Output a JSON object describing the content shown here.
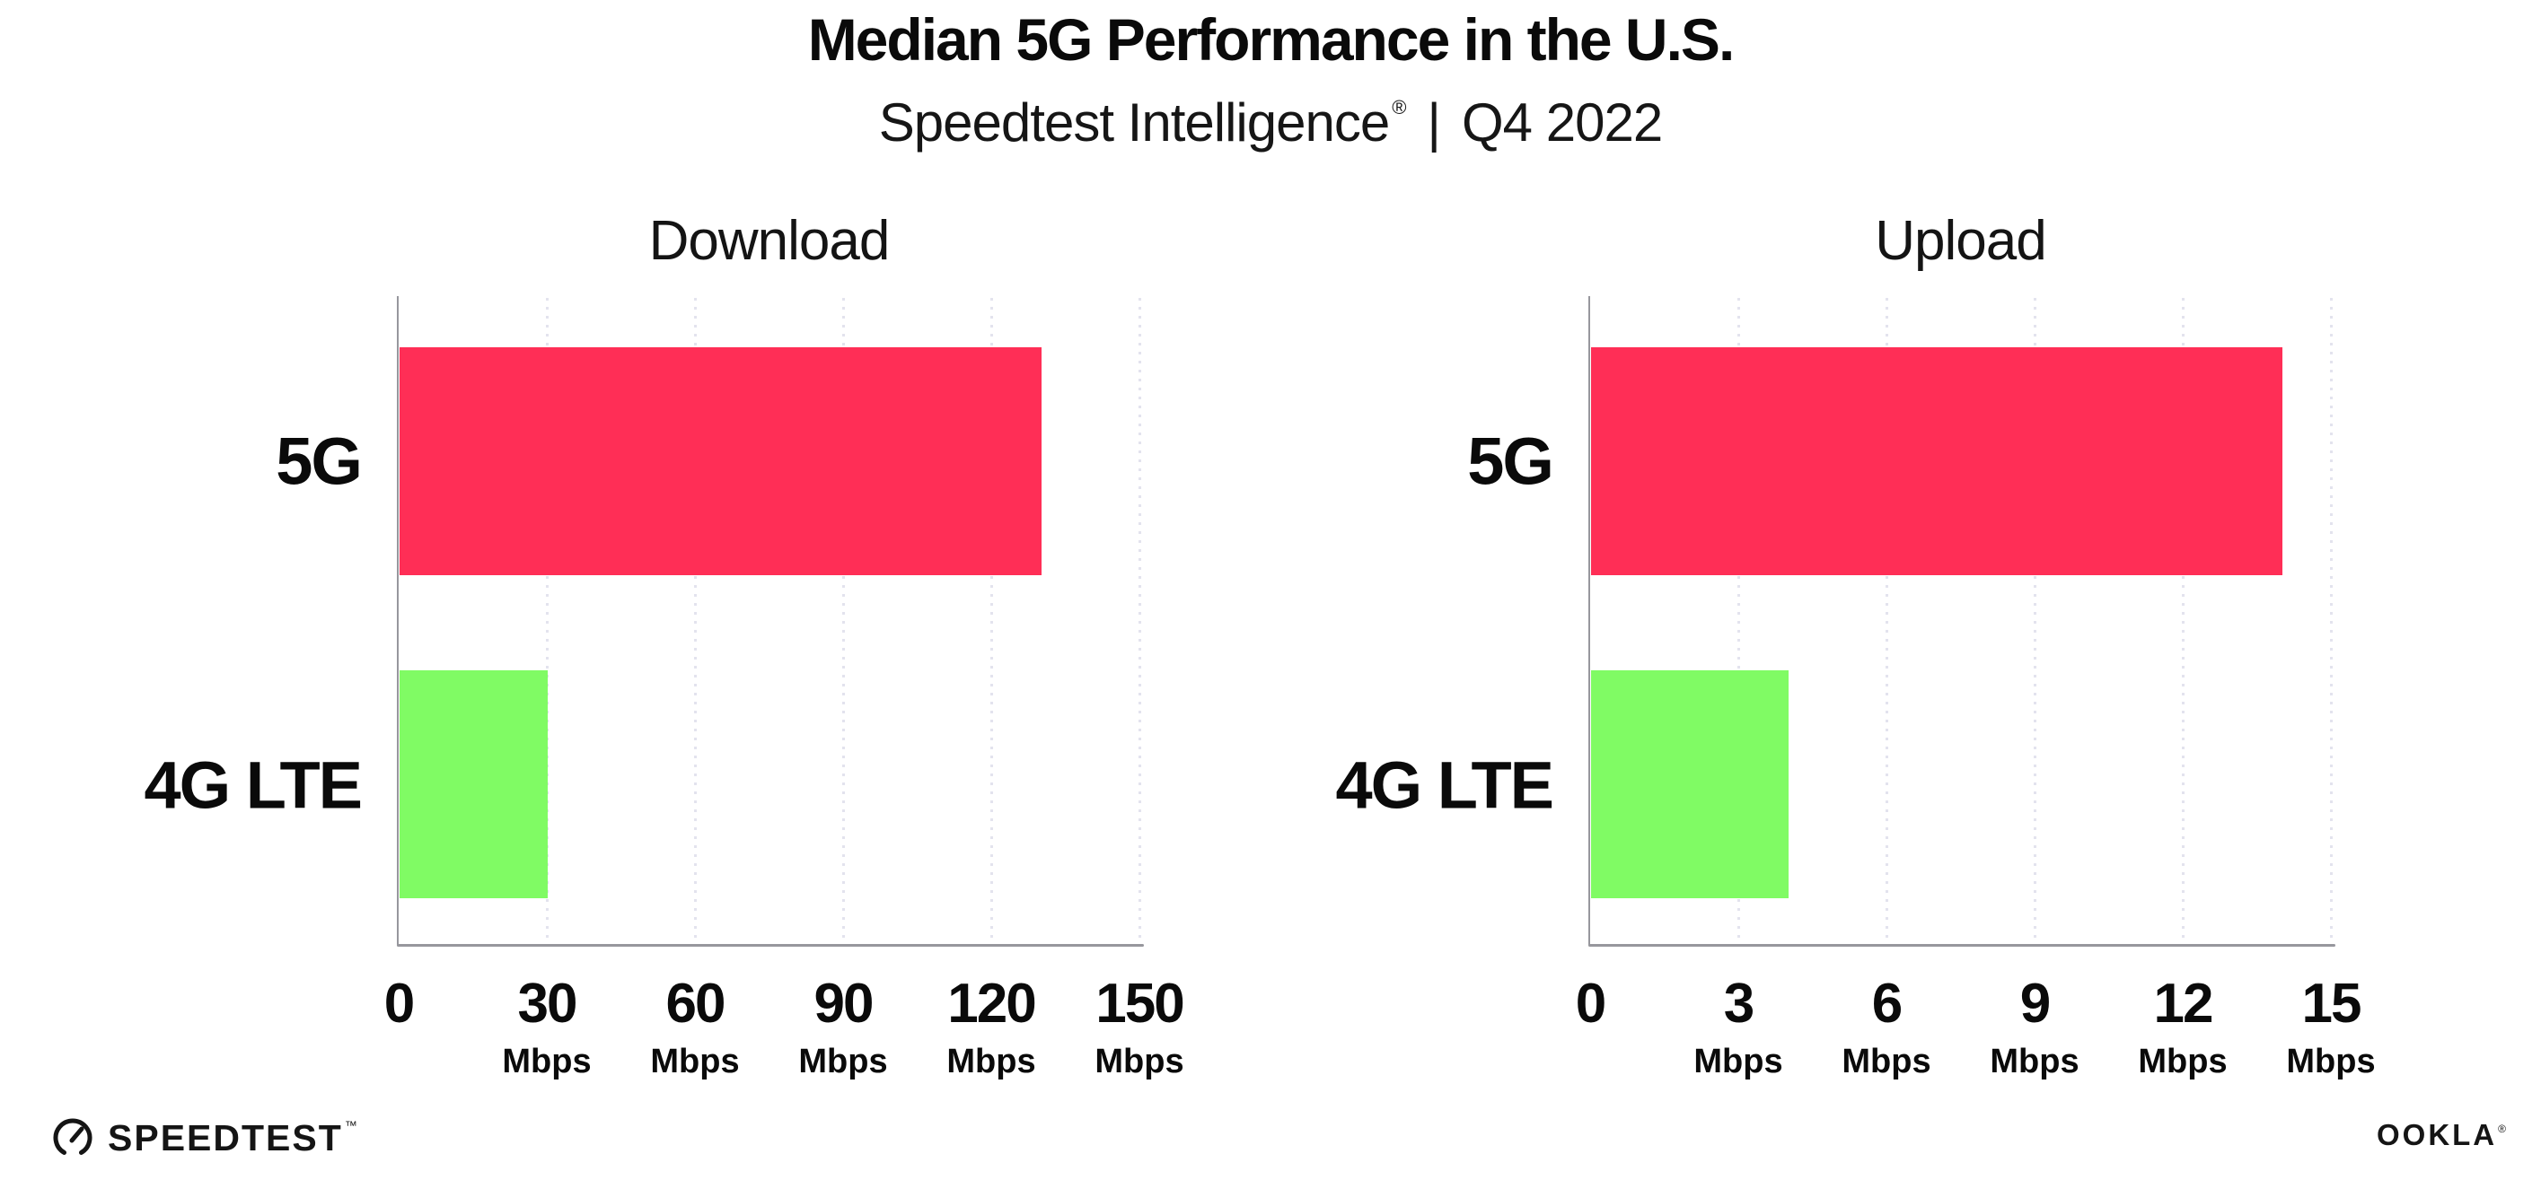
{
  "header": {
    "title": "Median 5G Performance in the U.S.",
    "subtitle_brand": "Speedtest Intelligence",
    "subtitle_registered": "®",
    "subtitle_separator": "|",
    "subtitle_period": "Q4 2022"
  },
  "chart_data": [
    {
      "type": "bar",
      "orientation": "horizontal",
      "title": "Download",
      "categories": [
        "5G",
        "4G LTE"
      ],
      "values": [
        130,
        30
      ],
      "unit": "Mbps",
      "xlim": [
        0,
        150
      ],
      "xticks": [
        0,
        30,
        60,
        90,
        120,
        150
      ],
      "bar_colors": [
        "#ff2e56",
        "#80fb64"
      ],
      "grid": "dotted-vertical",
      "legend": "none"
    },
    {
      "type": "bar",
      "orientation": "horizontal",
      "title": "Upload",
      "categories": [
        "5G",
        "4G LTE"
      ],
      "values": [
        14,
        4
      ],
      "unit": "Mbps",
      "xlim": [
        0,
        15
      ],
      "xticks": [
        0,
        3,
        6,
        9,
        12,
        15
      ],
      "bar_colors": [
        "#ff2e56",
        "#80fb64"
      ],
      "grid": "dotted-vertical",
      "legend": "none"
    }
  ],
  "footer": {
    "speedtest_label": "SPEEDTEST",
    "speedtest_trademark": "™",
    "ookla_label": "OOKLA",
    "ookla_registered": "®"
  },
  "colors": {
    "bar_5g": "#ff2e56",
    "bar_4g_lte": "#80fb64",
    "axis": "#97979d",
    "gridline": "#e3e3ee",
    "text": "#0a0a0a",
    "background": "#ffffff"
  }
}
